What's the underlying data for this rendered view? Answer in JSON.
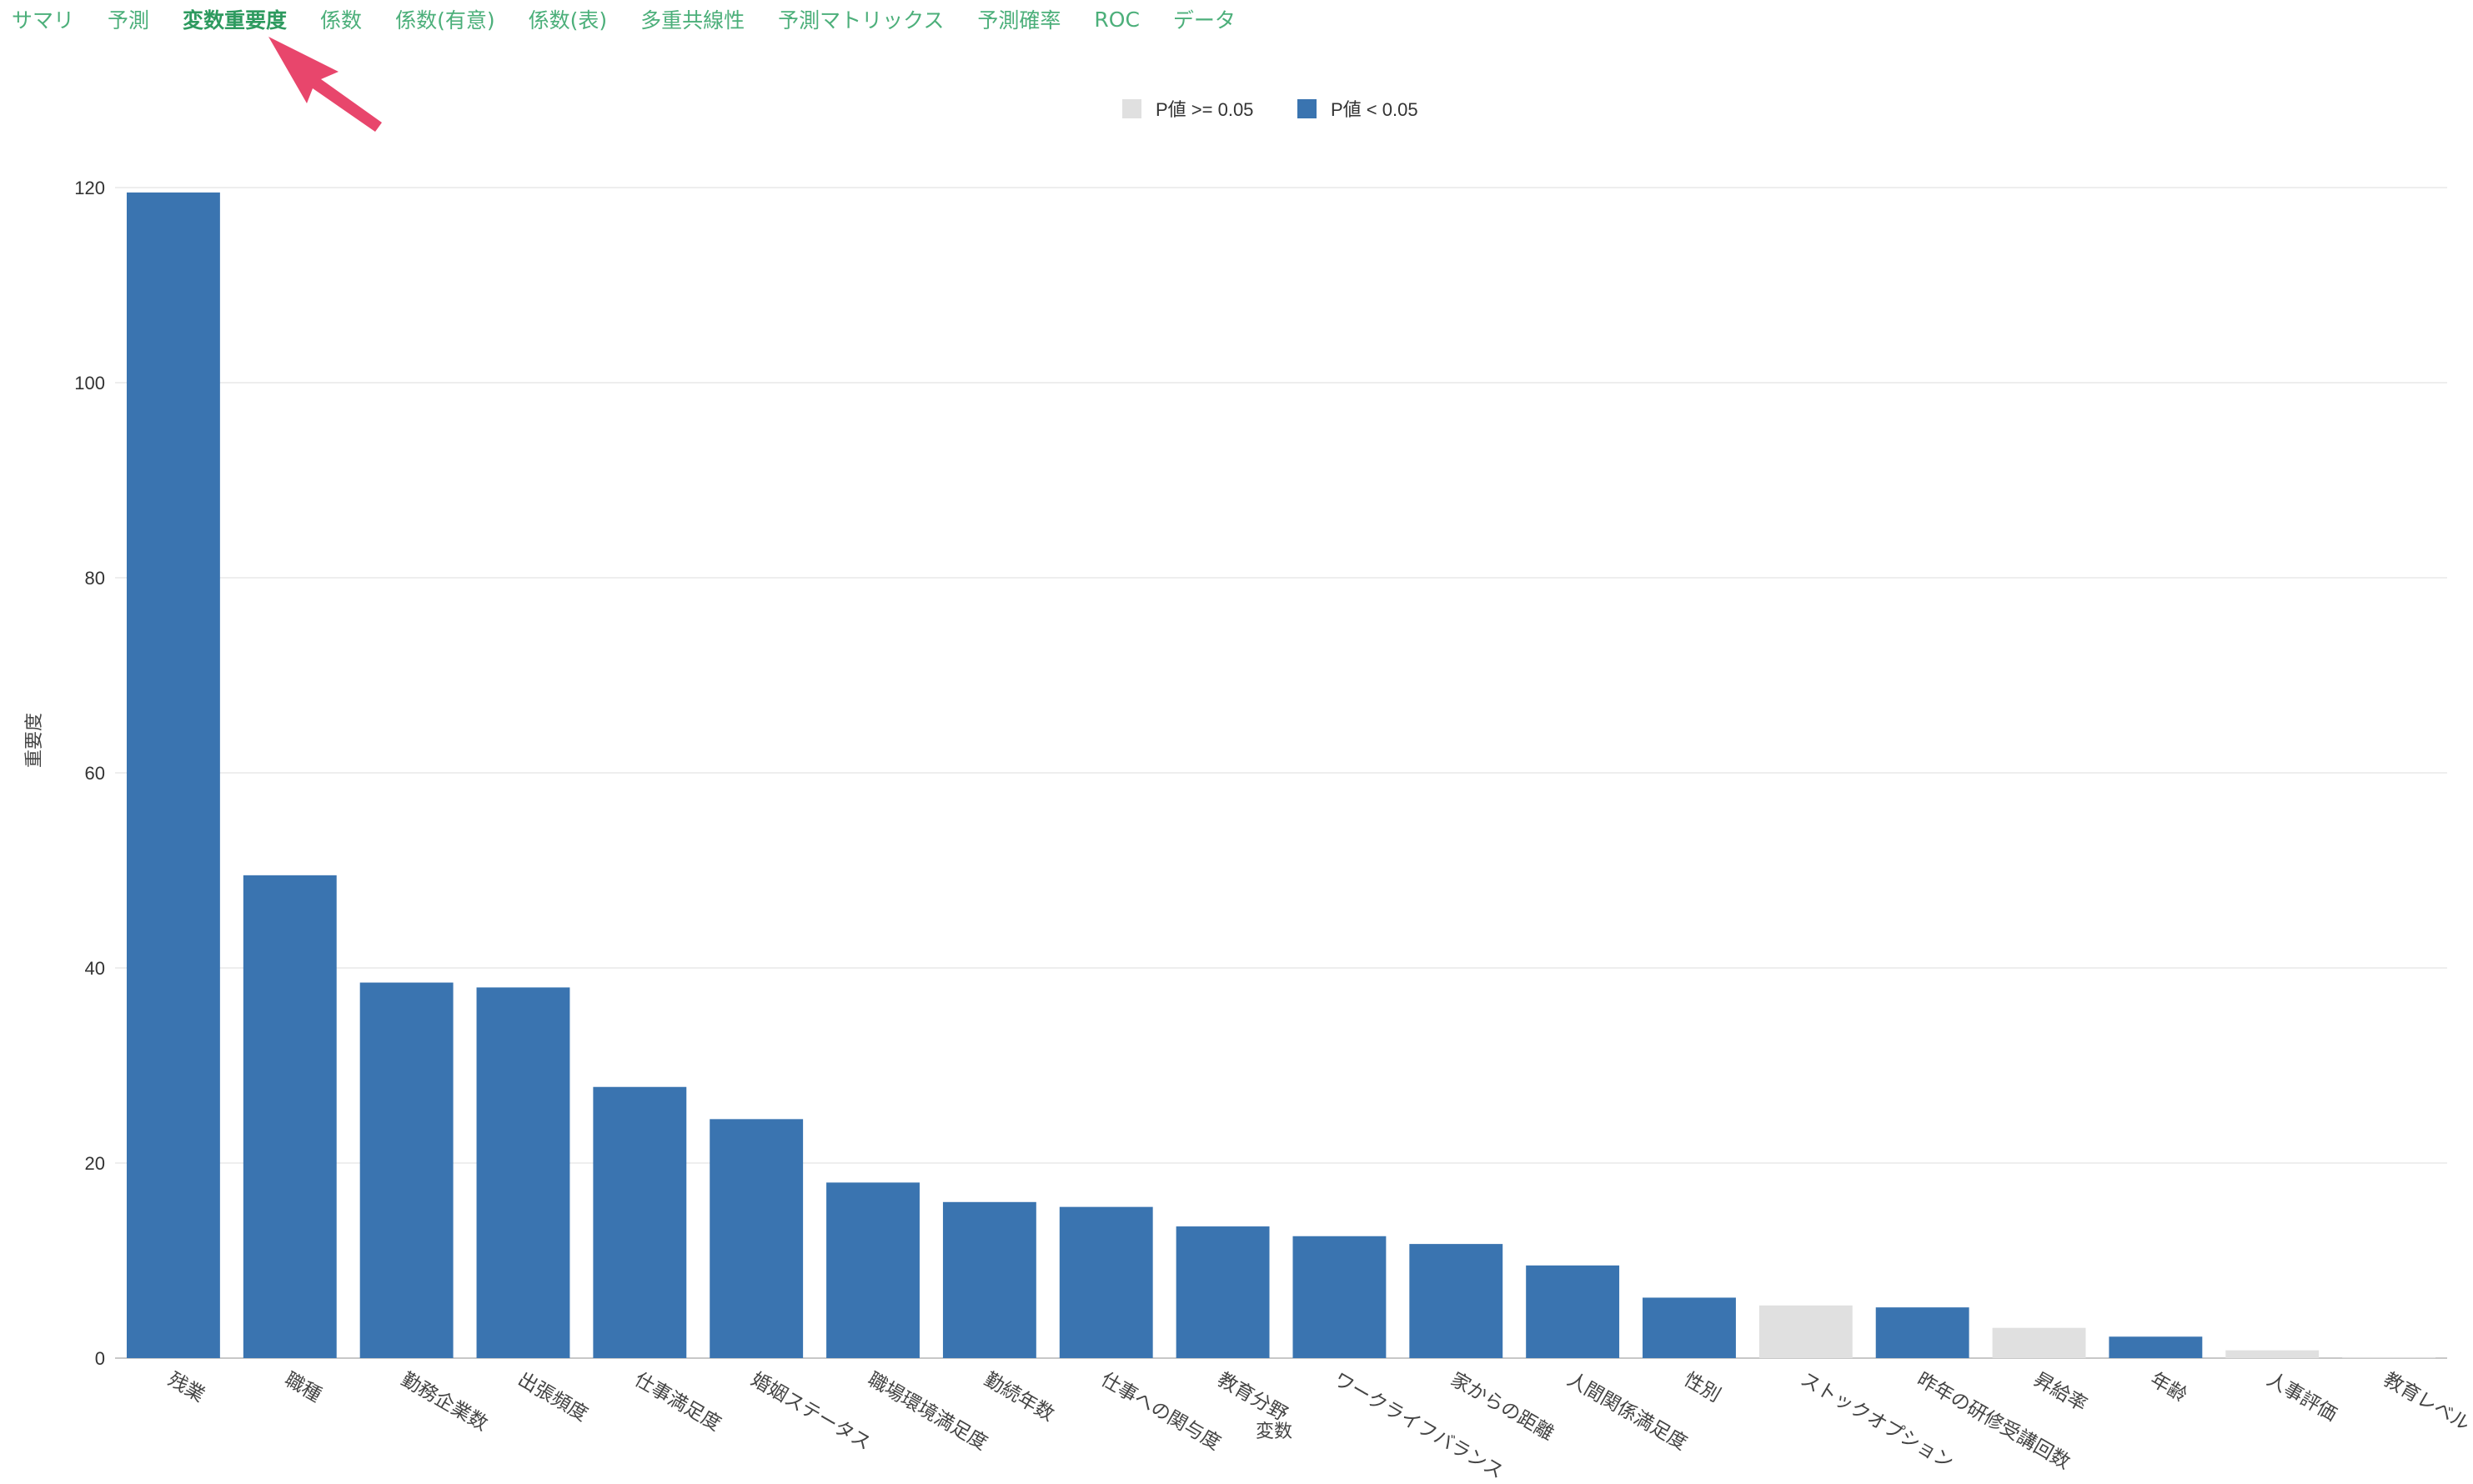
{
  "tabs": [
    {
      "label": "サマリ",
      "active": false
    },
    {
      "label": "予測",
      "active": false
    },
    {
      "label": "変数重要度",
      "active": true
    },
    {
      "label": "係数",
      "active": false
    },
    {
      "label": "係数(有意)",
      "active": false
    },
    {
      "label": "係数(表)",
      "active": false
    },
    {
      "label": "多重共線性",
      "active": false
    },
    {
      "label": "予測マトリックス",
      "active": false
    },
    {
      "label": "予測確率",
      "active": false
    },
    {
      "label": "ROC",
      "active": false
    },
    {
      "label": "データ",
      "active": false
    }
  ],
  "colors": {
    "significant": "#3a74b0",
    "not_significant": "#e0e0e0",
    "arrow": "#e8466c",
    "grid": "#e8e8e8",
    "tab_text": "#4caf7a"
  },
  "chart_data": {
    "type": "bar",
    "xlabel": "変数",
    "ylabel": "重要度",
    "ylim": [
      0,
      120
    ],
    "yticks": [
      0,
      20,
      40,
      60,
      80,
      100,
      120
    ],
    "grid": true,
    "legend_position": "top-center",
    "legend": [
      {
        "label": "P値 >= 0.05",
        "group": "not_significant"
      },
      {
        "label": "P値 < 0.05",
        "group": "significant"
      }
    ],
    "categories": [
      "残業",
      "職種",
      "勤務企業数",
      "出張頻度",
      "仕事満足度",
      "婚姻ステータス",
      "職場環境満足度",
      "勤続年数",
      "仕事への関与度",
      "教育分野",
      "ワークライフバランス",
      "家からの距離",
      "人間関係満足度",
      "性別",
      "ストックオプション",
      "昨年の研修受講回数",
      "昇給率",
      "年齢",
      "人事評価",
      "教育レベル"
    ],
    "values": [
      119.5,
      49.5,
      38.5,
      38,
      27.8,
      24.5,
      18,
      16,
      15.5,
      13.5,
      12.5,
      11.7,
      9.5,
      6.2,
      5.4,
      5.2,
      3.1,
      2.2,
      0.8,
      0.1
    ],
    "significant": [
      true,
      true,
      true,
      true,
      true,
      true,
      true,
      true,
      true,
      true,
      true,
      true,
      true,
      true,
      false,
      true,
      false,
      true,
      false,
      false
    ]
  }
}
